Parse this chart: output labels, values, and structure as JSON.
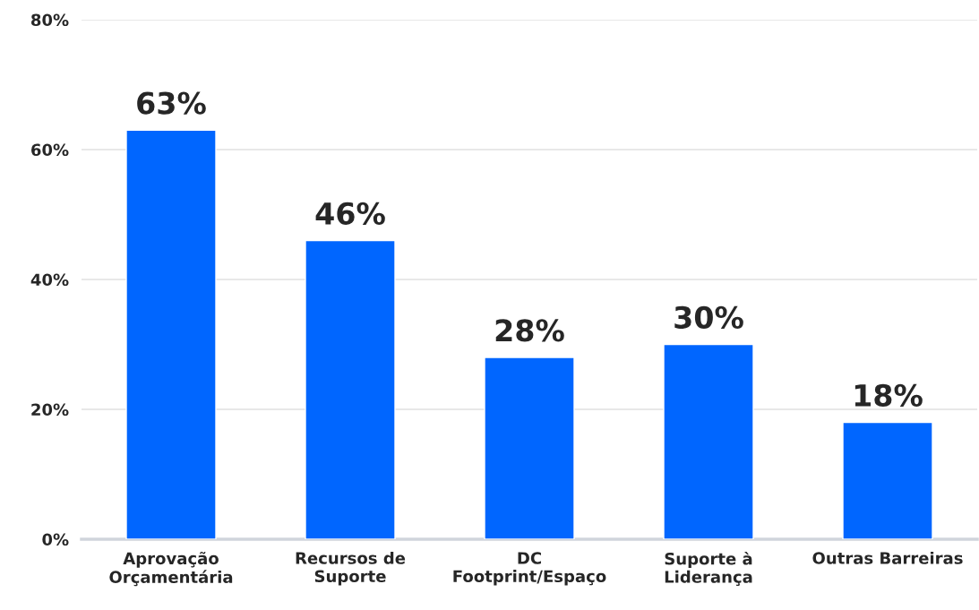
{
  "chart_data": {
    "type": "bar",
    "categories": [
      "Aprovação\nOrçamentária",
      "Recursos de\nSuporte",
      "DC\nFootprint/Espaço",
      "Suporte à\nLiderança",
      "Outras Barreiras"
    ],
    "values": [
      63,
      46,
      28,
      30,
      18
    ],
    "value_labels": [
      "63%",
      "46%",
      "28%",
      "30%",
      "18%"
    ],
    "color": "#0066ff",
    "ylim": [
      0,
      80
    ],
    "yticks": [
      {
        "value": 0,
        "label": "0%"
      },
      {
        "value": 20,
        "label": "20%"
      },
      {
        "value": 40,
        "label": "40%"
      },
      {
        "value": 60,
        "label": "60%"
      },
      {
        "value": 80,
        "label": "80%"
      }
    ],
    "grid": "y",
    "legend": false
  }
}
